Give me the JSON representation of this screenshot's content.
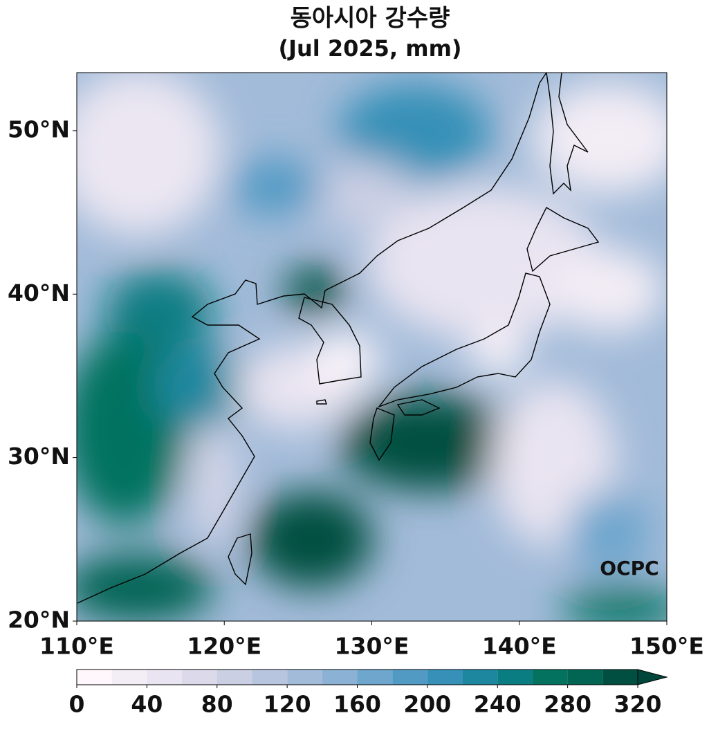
{
  "map": {
    "title": "동아시아 강수량",
    "subtitle": "(Jul 2025, mm)",
    "lonlim": [
      110,
      150
    ],
    "latlim": [
      20,
      53.55
    ],
    "xticks": [
      {
        "value": 110,
        "label": "110°E"
      },
      {
        "value": 120,
        "label": "120°E"
      },
      {
        "value": 130,
        "label": "130°E"
      },
      {
        "value": 140,
        "label": "140°E"
      },
      {
        "value": 150,
        "label": "150°E"
      }
    ],
    "yticks": [
      {
        "value": 20,
        "label": "20°N"
      },
      {
        "value": 30,
        "label": "30°N"
      },
      {
        "value": 40,
        "label": "40°N"
      },
      {
        "value": 50,
        "label": "50°N"
      }
    ],
    "watermark": "OCPC",
    "colorbar": {
      "lim": [
        0,
        320
      ],
      "ticks": [
        0,
        40,
        80,
        120,
        160,
        200,
        240,
        280,
        320
      ],
      "levels": [
        0,
        20,
        40,
        60,
        80,
        100,
        120,
        140,
        160,
        180,
        200,
        220,
        240,
        260,
        280,
        300,
        320
      ],
      "colors": [
        "#fff7fb",
        "#f3edf5",
        "#e9e4f1",
        "#dbd9ea",
        "#cbcfe4",
        "#b7c5df",
        "#a2bbd9",
        "#8bb2d4",
        "#6ea6cd",
        "#519ac4",
        "#3690b7",
        "#1c879f",
        "#0a7d83",
        "#03725f",
        "#026452",
        "#014f40"
      ],
      "extend_color": "#01463a"
    }
  }
}
